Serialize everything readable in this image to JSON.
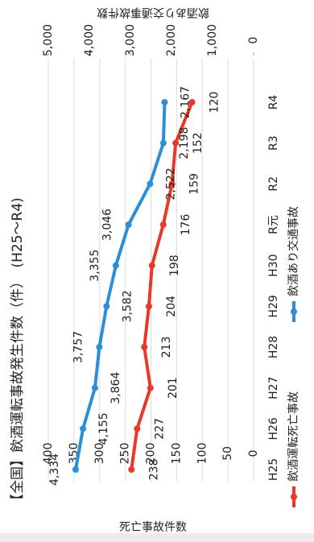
{
  "chart_data": {
    "type": "line",
    "title": "【全国】飲酒運転事故発生件数（件）　(H25～R4)",
    "categories": [
      "H25",
      "H26",
      "H27",
      "H28",
      "H29",
      "H30",
      "R元",
      "R2",
      "R3",
      "R4"
    ],
    "series": [
      {
        "name": "飲酒運転死亡事故",
        "color": "#e8382a",
        "axis": "y",
        "values": [
          238,
          227,
          201,
          213,
          204,
          198,
          176,
          159,
          152,
          120
        ]
      },
      {
        "name": "飲酒あり交通事故",
        "color": "#2a8fd8",
        "axis": "y2",
        "values": [
          4334,
          4155,
          3864,
          3757,
          3582,
          3355,
          3046,
          2522,
          2198,
          2167
        ],
        "value_labels": [
          "4,334",
          "4,155",
          "3,864",
          "3,757",
          "3,582",
          "3,355",
          "3,046",
          "2,522",
          "2,198",
          "2,167"
        ]
      }
    ],
    "ylabel": "死亡事故件数",
    "y2label": "飲酒あり交通事故件数",
    "ylim": [
      0,
      400
    ],
    "yticks": [
      0,
      50,
      100,
      150,
      200,
      250,
      300,
      350,
      400
    ],
    "y2lim": [
      0,
      5000
    ],
    "y2ticks": [
      0,
      {
        "value": 1000,
        "label": "1,000"
      },
      {
        "value": 2000,
        "label": "2,000"
      },
      {
        "value": 3000,
        "label": "3,000"
      },
      {
        "value": 4000,
        "label": "4,000"
      },
      {
        "value": 5000,
        "label": "5,000"
      }
    ],
    "grid": true,
    "legend": "bottom"
  }
}
